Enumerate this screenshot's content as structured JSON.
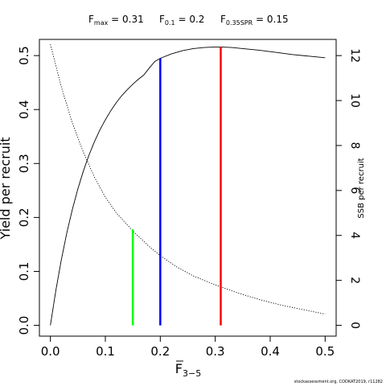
{
  "header": {
    "fmax_value": "0.31",
    "f01_value": "0.2",
    "f035_value": "0.15"
  },
  "footer": {
    "credit": "stockassessment.org,  CODKAT2019,  r11282"
  },
  "chart_data": {
    "type": "line",
    "xlabel_main": "F",
    "xlabel_sub": "3−5",
    "ylabel_left": "Yield per recruit",
    "ylabel_right": "SSB per recruit",
    "xlim": [
      -0.02,
      0.52
    ],
    "ylim_left": [
      -0.02,
      0.53
    ],
    "ylim_right": [
      -0.48,
      12.72
    ],
    "x_ticks": [
      0.0,
      0.1,
      0.2,
      0.3,
      0.4,
      0.5
    ],
    "x_tick_labels": [
      "0.0",
      "0.1",
      "0.2",
      "0.3",
      "0.4",
      "0.5"
    ],
    "y_left_ticks": [
      0.0,
      0.1,
      0.2,
      0.3,
      0.4,
      0.5
    ],
    "y_left_tick_labels": [
      "0.0",
      "0.1",
      "0.2",
      "0.3",
      "0.4",
      "0.5"
    ],
    "y_right_ticks": [
      0,
      2,
      4,
      6,
      8,
      10,
      12
    ],
    "y_right_tick_labels": [
      "0",
      "2",
      "4",
      "6",
      "8",
      "10",
      "12"
    ],
    "series": [
      {
        "axis": "left",
        "style": "solid",
        "color": "#000000",
        "x": [
          0.0,
          0.01,
          0.02,
          0.03,
          0.04,
          0.05,
          0.06,
          0.07,
          0.08,
          0.09,
          0.1,
          0.11,
          0.12,
          0.13,
          0.14,
          0.15,
          0.16,
          0.17,
          0.18,
          0.19,
          0.2,
          0.22,
          0.24,
          0.26,
          0.28,
          0.3,
          0.31,
          0.33,
          0.35,
          0.38,
          0.41,
          0.44,
          0.47,
          0.5
        ],
        "y": [
          0.0,
          0.065,
          0.122,
          0.172,
          0.215,
          0.253,
          0.286,
          0.315,
          0.34,
          0.362,
          0.381,
          0.398,
          0.413,
          0.426,
          0.437,
          0.447,
          0.456,
          0.464,
          0.477,
          0.489,
          0.495,
          0.503,
          0.509,
          0.513,
          0.515,
          0.516,
          0.516,
          0.515,
          0.513,
          0.51,
          0.506,
          0.502,
          0.499,
          0.496
        ]
      },
      {
        "axis": "right",
        "style": "dotted",
        "color": "#000000",
        "x": [
          0.0,
          0.02,
          0.04,
          0.06,
          0.08,
          0.1,
          0.12,
          0.15,
          0.18,
          0.2,
          0.23,
          0.26,
          0.3,
          0.34,
          0.38,
          0.42,
          0.46,
          0.5
        ],
        "y": [
          12.5,
          10.6,
          9.0,
          7.7,
          6.6,
          5.7,
          5.0,
          4.2,
          3.5,
          3.1,
          2.6,
          2.2,
          1.8,
          1.45,
          1.15,
          0.9,
          0.7,
          0.5
        ]
      }
    ],
    "ref_lines": [
      {
        "x": 0.15,
        "y": 0.178,
        "color": "#00ff00"
      },
      {
        "x": 0.2,
        "y": 0.495,
        "color": "#0000ff"
      },
      {
        "x": 0.31,
        "y": 0.516,
        "color": "#ff0000"
      }
    ]
  }
}
